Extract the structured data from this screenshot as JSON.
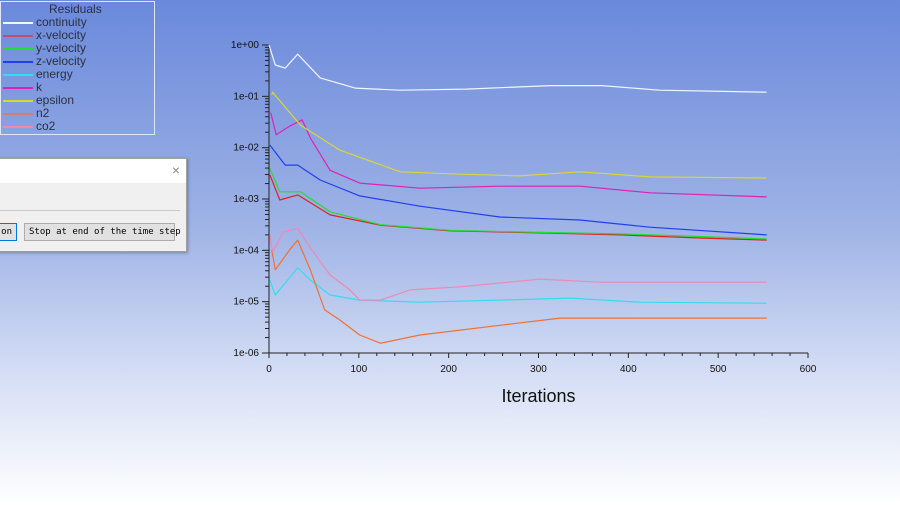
{
  "dialog": {
    "button_partial": "on",
    "stop_button": "Stop at end of the time step",
    "close_icon": "×"
  },
  "chart_data": {
    "type": "line",
    "title": "Residuals",
    "xlabel": "Iterations",
    "ylabel": "",
    "xlim": [
      0,
      600
    ],
    "ylim_log10": [
      -6,
      0
    ],
    "y_scale": "log",
    "x_ticks": [
      "0",
      "100",
      "200",
      "300",
      "400",
      "500",
      "600"
    ],
    "y_ticks": [
      "1e+00",
      "1e-01",
      "1e-02",
      "1e-03",
      "1e-04",
      "1e-05",
      "1e-06"
    ],
    "legend_placement": "top-left",
    "series": [
      {
        "name": "continuity",
        "color": "#f4f6ff",
        "x": [
          0,
          7,
          18,
          32,
          57,
          96,
          146,
          220,
          313,
          370,
          435,
          554
        ],
        "log10": [
          0,
          -0.39,
          -0.45,
          -0.18,
          -0.64,
          -0.84,
          -0.88,
          -0.86,
          -0.79,
          -0.79,
          -0.88,
          -0.92
        ]
      },
      {
        "name": "x-velocity",
        "color": "#e02020",
        "legend_color": "#c0506a",
        "x": [
          1,
          12,
          32,
          68,
          124,
          201,
          302,
          391,
          480,
          554
        ],
        "log10": [
          -2.53,
          -3.02,
          -2.92,
          -3.31,
          -3.51,
          -3.62,
          -3.66,
          -3.7,
          -3.76,
          -3.8
        ]
      },
      {
        "name": "y-velocity",
        "color": "#22dd33",
        "x": [
          1,
          12,
          35,
          68,
          124,
          201,
          302,
          391,
          480,
          554
        ],
        "log10": [
          -2.4,
          -2.86,
          -2.86,
          -3.25,
          -3.5,
          -3.61,
          -3.65,
          -3.68,
          -3.73,
          -3.78
        ]
      },
      {
        "name": "z-velocity",
        "color": "#2040ee",
        "x": [
          1,
          18,
          32,
          57,
          101,
          168,
          257,
          346,
          424,
          554
        ],
        "log10": [
          -1.95,
          -2.34,
          -2.34,
          -2.63,
          -2.94,
          -3.14,
          -3.35,
          -3.41,
          -3.55,
          -3.7
        ]
      },
      {
        "name": "energy",
        "color": "#33ddf0",
        "x": [
          1,
          7,
          32,
          46,
          68,
          101,
          168,
          257,
          335,
          413,
          554
        ],
        "log10": [
          -4.58,
          -4.87,
          -4.34,
          -4.58,
          -4.87,
          -4.97,
          -5.01,
          -4.97,
          -4.93,
          -5.01,
          -5.03
        ]
      },
      {
        "name": "k",
        "color": "#dd22bb",
        "x": [
          2,
          8,
          23,
          37,
          46,
          68,
          101,
          168,
          257,
          346,
          424,
          554
        ],
        "log10": [
          -1.32,
          -1.75,
          -1.58,
          -1.46,
          -1.81,
          -2.44,
          -2.69,
          -2.79,
          -2.75,
          -2.75,
          -2.88,
          -2.96
        ]
      },
      {
        "name": "epsilon",
        "color": "#d8d830",
        "x": [
          3,
          4,
          35,
          79,
          146,
          201,
          279,
          346,
          424,
          554
        ],
        "log10": [
          -0.97,
          -0.92,
          -1.56,
          -2.05,
          -2.47,
          -2.51,
          -2.55,
          -2.47,
          -2.57,
          -2.59
        ]
      },
      {
        "name": "n2",
        "color": "#f07030",
        "legend_color": "#d08070",
        "x": [
          3,
          7,
          23,
          32,
          46,
          62,
          79,
          101,
          124,
          168,
          257,
          324,
          413,
          554
        ],
        "log10": [
          -3.99,
          -4.38,
          -3.99,
          -3.8,
          -4.38,
          -5.16,
          -5.36,
          -5.65,
          -5.81,
          -5.65,
          -5.46,
          -5.32,
          -5.32,
          -5.32
        ]
      },
      {
        "name": "co2",
        "color": "#f088b0",
        "x": [
          1,
          4,
          16,
          32,
          46,
          68,
          90,
          101,
          124,
          157,
          213,
          302,
          368,
          554
        ],
        "log10": [
          -3.7,
          -4.03,
          -3.64,
          -3.57,
          -3.95,
          -4.48,
          -4.77,
          -4.97,
          -4.97,
          -4.77,
          -4.71,
          -4.56,
          -4.62,
          -4.62
        ]
      }
    ]
  }
}
